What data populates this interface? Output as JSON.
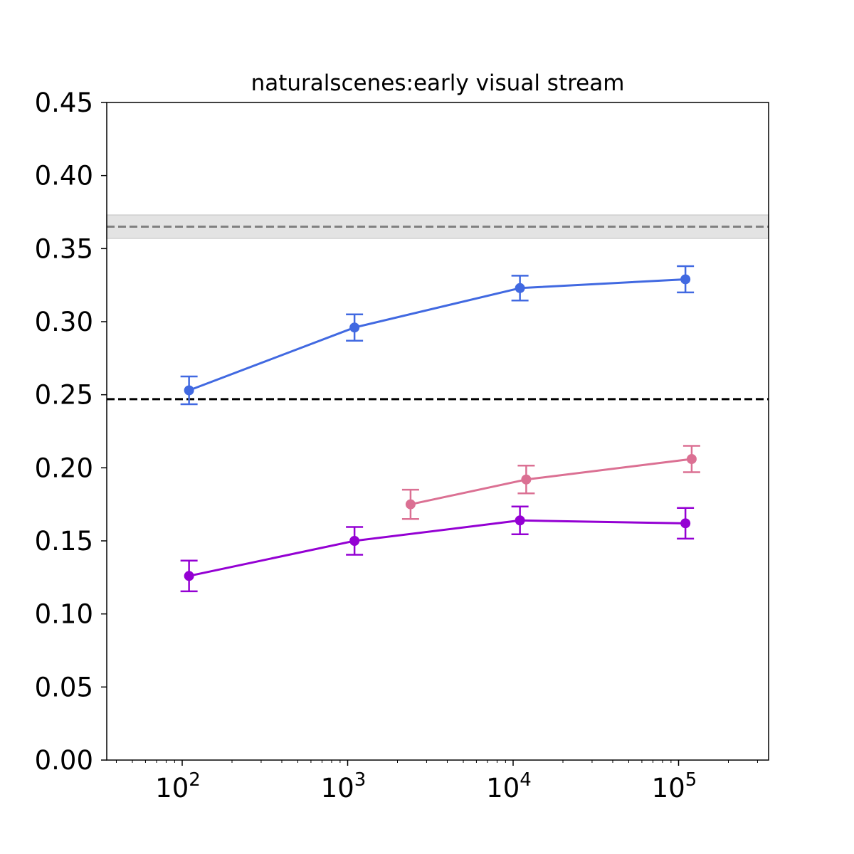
{
  "chart_data": {
    "type": "line",
    "title": "naturalscenes:early visual stream",
    "xlabel": "",
    "ylabel": "",
    "xscale": "log",
    "xlim": [
      35,
      350000
    ],
    "ylim": [
      0,
      0.45
    ],
    "grid": false,
    "legend": "none",
    "yticks": [
      {
        "value": 0.0,
        "label": "0.00"
      },
      {
        "value": 0.05,
        "label": "0.05"
      },
      {
        "value": 0.1,
        "label": "0.10"
      },
      {
        "value": 0.15,
        "label": "0.15"
      },
      {
        "value": 0.2,
        "label": "0.20"
      },
      {
        "value": 0.25,
        "label": "0.25"
      },
      {
        "value": 0.3,
        "label": "0.30"
      },
      {
        "value": 0.35,
        "label": "0.35"
      },
      {
        "value": 0.4,
        "label": "0.40"
      },
      {
        "value": 0.45,
        "label": "0.45"
      }
    ],
    "xticks": [
      {
        "value": 100,
        "base": "10",
        "exp": "2"
      },
      {
        "value": 1000,
        "base": "10",
        "exp": "3"
      },
      {
        "value": 10000,
        "base": "10",
        "exp": "4"
      },
      {
        "value": 100000,
        "base": "10",
        "exp": "5"
      }
    ],
    "series": [
      {
        "color": "#4169e1",
        "points": [
          {
            "x": 110,
            "y": 0.253,
            "err": 0.0095
          },
          {
            "x": 1100,
            "y": 0.296,
            "err": 0.009
          },
          {
            "x": 11000,
            "y": 0.323,
            "err": 0.0085
          },
          {
            "x": 110000,
            "y": 0.329,
            "err": 0.009
          }
        ]
      },
      {
        "color": "#db7093",
        "points": [
          {
            "x": 2400,
            "y": 0.175,
            "err": 0.01
          },
          {
            "x": 12000,
            "y": 0.192,
            "err": 0.0095
          },
          {
            "x": 120000,
            "y": 0.206,
            "err": 0.009
          }
        ]
      },
      {
        "color": "#9400d3",
        "points": [
          {
            "x": 110,
            "y": 0.126,
            "err": 0.0105
          },
          {
            "x": 1100,
            "y": 0.15,
            "err": 0.0095
          },
          {
            "x": 11000,
            "y": 0.164,
            "err": 0.0095
          },
          {
            "x": 110000,
            "y": 0.162,
            "err": 0.0105
          }
        ]
      }
    ],
    "reference_lines": [
      {
        "y": 0.247,
        "color": "#000000",
        "style": "dashed",
        "band": null
      },
      {
        "y": 0.365,
        "color": "#808080",
        "style": "dashed",
        "band": [
          0.357,
          0.373
        ],
        "band_color": "#e3e3e3"
      }
    ]
  }
}
